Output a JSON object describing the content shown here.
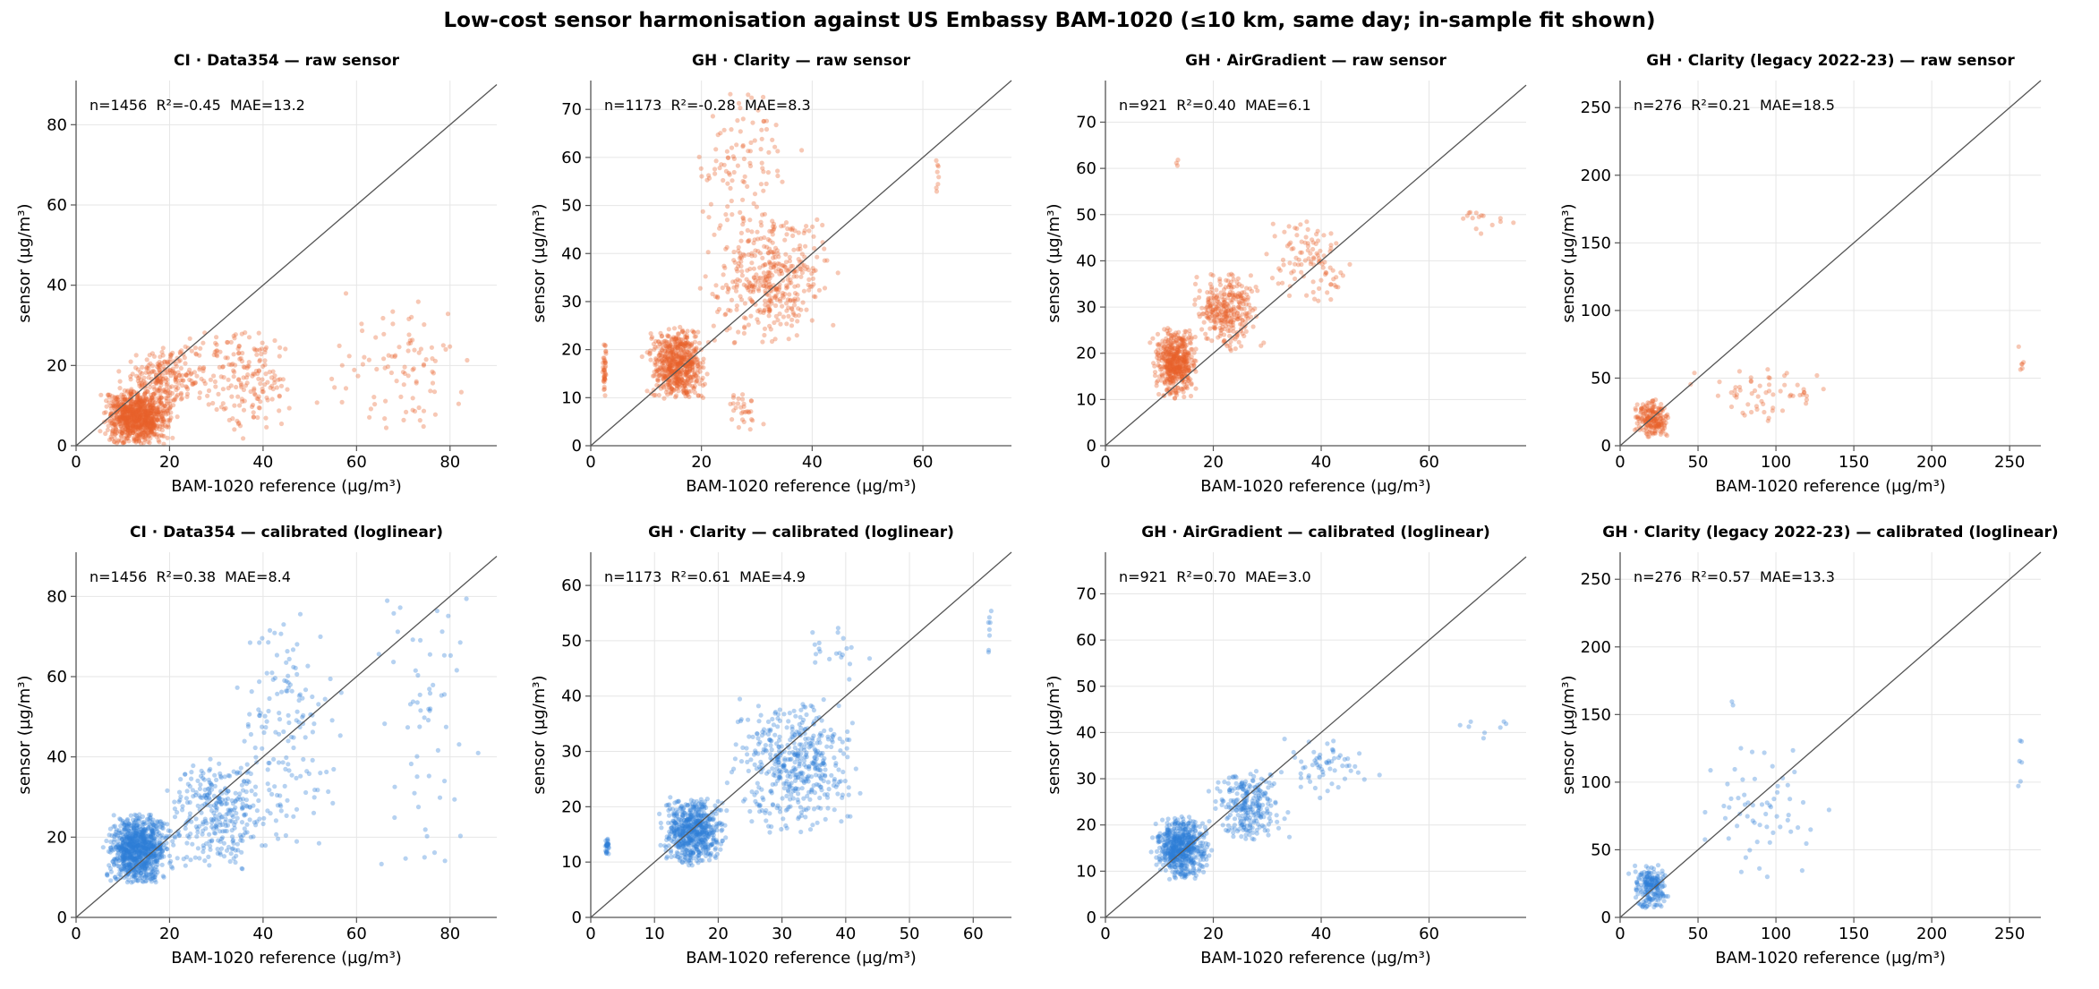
{
  "figure": {
    "title": "Low-cost sensor harmonisation against US Embassy BAM-1020 (≤10 km, same day; in-sample fit shown)"
  },
  "colors": {
    "raw": "#e8602c",
    "calibrated": "#2f7fd8",
    "identity": "#555555",
    "grid": "#e6e6e6",
    "axis": "#555555"
  },
  "chart_data": [
    {
      "type": "scatter",
      "title": "CI · Data354 — raw sensor",
      "stats": "n=1456  R²=-0.45  MAE=13.2",
      "xlabel": "BAM-1020 reference (µg/m³)",
      "ylabel": "sensor (µg/m³)",
      "xlim": [
        0,
        90
      ],
      "ylim": [
        0,
        91
      ],
      "xticks": [
        0,
        20,
        40,
        60,
        80
      ],
      "yticks": [
        0,
        20,
        40,
        60,
        80
      ],
      "series": [
        {
          "style": "raw",
          "clusters": [
            {
              "n": 900,
              "x": [
                4,
                22
              ],
              "y": [
                0,
                14
              ]
            },
            {
              "n": 250,
              "x": [
                8,
                30
              ],
              "y": [
                8,
                25
              ]
            },
            {
              "n": 180,
              "x": [
                22,
                50
              ],
              "y": [
                0,
                30
              ]
            },
            {
              "n": 90,
              "x": [
                50,
                89
              ],
              "y": [
                0,
                40
              ]
            }
          ]
        }
      ],
      "grid": true
    },
    {
      "type": "scatter",
      "title": "GH · Clarity — raw sensor",
      "stats": "n=1173  R²=-0.28  MAE=8.3",
      "xlabel": "BAM-1020 reference (µg/m³)",
      "ylabel": "sensor (µg/m³)",
      "xlim": [
        0,
        76
      ],
      "ylim": [
        0,
        76
      ],
      "xticks": [
        0,
        20,
        40,
        60
      ],
      "yticks": [
        0,
        10,
        20,
        30,
        40,
        50,
        60,
        70
      ],
      "series": [
        {
          "style": "raw",
          "clusters": [
            {
              "n": 600,
              "x": [
                9,
                22
              ],
              "y": [
                9,
                25
              ]
            },
            {
              "n": 400,
              "x": [
                18,
                46
              ],
              "y": [
                20,
                50
              ]
            },
            {
              "n": 100,
              "x": [
                15,
                40
              ],
              "y": [
                40,
                75
              ]
            },
            {
              "n": 40,
              "x": [
                2,
                3
              ],
              "y": [
                10,
                22
              ]
            },
            {
              "n": 30,
              "x": [
                22,
                32
              ],
              "y": [
                3,
                12
              ]
            },
            {
              "n": 8,
              "x": [
                62,
                63
              ],
              "y": [
                50,
                62
              ]
            }
          ]
        }
      ],
      "grid": true
    },
    {
      "type": "scatter",
      "title": "GH · AirGradient — raw sensor",
      "stats": "n=921  R²=0.40  MAE=6.1",
      "xlabel": "BAM-1020 reference (µg/m³)",
      "ylabel": "sensor (µg/m³)",
      "xlim": [
        0,
        78
      ],
      "ylim": [
        0,
        79
      ],
      "xticks": [
        0,
        20,
        40,
        60
      ],
      "yticks": [
        0,
        10,
        20,
        30,
        40,
        50,
        60,
        70
      ],
      "series": [
        {
          "style": "raw",
          "clusters": [
            {
              "n": 500,
              "x": [
                8,
                18
              ],
              "y": [
                10,
                26
              ]
            },
            {
              "n": 300,
              "x": [
                15,
                30
              ],
              "y": [
                20,
                38
              ]
            },
            {
              "n": 100,
              "x": [
                28,
                48
              ],
              "y": [
                30,
                50
              ]
            },
            {
              "n": 15,
              "x": [
                60,
                78
              ],
              "y": [
                45,
                52
              ]
            },
            {
              "n": 3,
              "x": [
                13,
                14
              ],
              "y": [
                60,
                63
              ]
            }
          ]
        }
      ],
      "grid": true
    },
    {
      "type": "scatter",
      "title": "GH · Clarity (legacy 2022-23) — raw sensor",
      "stats": "n=276  R²=0.21  MAE=18.5",
      "xlabel": "BAM-1020 reference (µg/m³)",
      "ylabel": "sensor (µg/m³)",
      "xlim": [
        0,
        270
      ],
      "ylim": [
        0,
        270
      ],
      "xticks": [
        0,
        50,
        100,
        150,
        200,
        250
      ],
      "yticks": [
        0,
        50,
        100,
        150,
        200,
        250
      ],
      "series": [
        {
          "style": "raw",
          "clusters": [
            {
              "n": 200,
              "x": [
                5,
                35
              ],
              "y": [
                5,
                35
              ]
            },
            {
              "n": 60,
              "x": [
                40,
                145
              ],
              "y": [
                15,
                60
              ]
            },
            {
              "n": 6,
              "x": [
                253,
                260
              ],
              "y": [
                50,
                75
              ]
            }
          ]
        }
      ],
      "grid": true
    },
    {
      "type": "scatter",
      "title": "CI · Data354 — calibrated (loglinear)",
      "stats": "n=1456  R²=0.38  MAE=8.4",
      "xlabel": "BAM-1020 reference (µg/m³)",
      "ylabel": "sensor (µg/m³)",
      "xlim": [
        0,
        90
      ],
      "ylim": [
        0,
        91
      ],
      "xticks": [
        0,
        20,
        40,
        60,
        80
      ],
      "yticks": [
        0,
        20,
        40,
        60,
        80
      ],
      "series": [
        {
          "style": "calibrated",
          "clusters": [
            {
              "n": 900,
              "x": [
                5,
                22
              ],
              "y": [
                8,
                26
              ]
            },
            {
              "n": 300,
              "x": [
                15,
                45
              ],
              "y": [
                10,
                40
              ]
            },
            {
              "n": 150,
              "x": [
                30,
                60
              ],
              "y": [
                10,
                80
              ]
            },
            {
              "n": 60,
              "x": [
                60,
                89
              ],
              "y": [
                10,
                90
              ]
            }
          ]
        }
      ],
      "grid": true
    },
    {
      "type": "scatter",
      "title": "GH · Clarity — calibrated (loglinear)",
      "stats": "n=1173  R²=0.61  MAE=4.9",
      "xlabel": "BAM-1020 reference (µg/m³)",
      "ylabel": "sensor (µg/m³)",
      "xlim": [
        0,
        66
      ],
      "ylim": [
        0,
        66
      ],
      "xticks": [
        0,
        10,
        20,
        30,
        40,
        50,
        60
      ],
      "yticks": [
        0,
        10,
        20,
        30,
        40,
        50,
        60
      ],
      "series": [
        {
          "style": "calibrated",
          "clusters": [
            {
              "n": 600,
              "x": [
                10,
                22
              ],
              "y": [
                9,
                22
              ]
            },
            {
              "n": 450,
              "x": [
                20,
                44
              ],
              "y": [
                15,
                40
              ]
            },
            {
              "n": 30,
              "x": [
                2,
                3
              ],
              "y": [
                11,
                15
              ]
            },
            {
              "n": 20,
              "x": [
                30,
                45
              ],
              "y": [
                40,
                55
              ]
            },
            {
              "n": 8,
              "x": [
                62,
                63
              ],
              "y": [
                46,
                56
              ]
            }
          ]
        }
      ],
      "grid": true
    },
    {
      "type": "scatter",
      "title": "GH · AirGradient — calibrated (loglinear)",
      "stats": "n=921  R²=0.70  MAE=3.0",
      "xlabel": "BAM-1020 reference (µg/m³)",
      "ylabel": "sensor (µg/m³)",
      "xlim": [
        0,
        78
      ],
      "ylim": [
        0,
        79
      ],
      "xticks": [
        0,
        20,
        40,
        60
      ],
      "yticks": [
        0,
        10,
        20,
        30,
        40,
        50,
        60,
        70
      ],
      "series": [
        {
          "style": "calibrated",
          "clusters": [
            {
              "n": 600,
              "x": [
                8,
                20
              ],
              "y": [
                8,
                22
              ]
            },
            {
              "n": 250,
              "x": [
                18,
                35
              ],
              "y": [
                16,
                32
              ]
            },
            {
              "n": 60,
              "x": [
                30,
                52
              ],
              "y": [
                25,
                40
              ]
            },
            {
              "n": 8,
              "x": [
                62,
                78
              ],
              "y": [
                38,
                44
              ]
            }
          ]
        }
      ],
      "grid": true
    },
    {
      "type": "scatter",
      "title": "GH · Clarity (legacy 2022-23) — calibrated (loglinear)",
      "stats": "n=276  R²=0.57  MAE=13.3",
      "xlabel": "BAM-1020 reference (µg/m³)",
      "ylabel": "sensor (µg/m³)",
      "xlim": [
        0,
        270
      ],
      "ylim": [
        0,
        270
      ],
      "xticks": [
        0,
        50,
        100,
        150,
        200,
        250
      ],
      "yticks": [
        0,
        50,
        100,
        150,
        200,
        250
      ],
      "series": [
        {
          "style": "calibrated",
          "clusters": [
            {
              "n": 200,
              "x": [
                5,
                35
              ],
              "y": [
                5,
                40
              ]
            },
            {
              "n": 60,
              "x": [
                40,
                145
              ],
              "y": [
                20,
                140
              ]
            },
            {
              "n": 6,
              "x": [
                253,
                260
              ],
              "y": [
                80,
                140
              ]
            },
            {
              "n": 2,
              "x": [
                70,
                74
              ],
              "y": [
                155,
                162
              ]
            }
          ]
        }
      ],
      "grid": true
    }
  ]
}
